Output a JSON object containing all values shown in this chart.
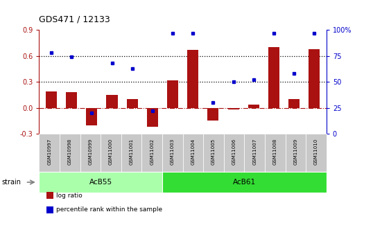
{
  "title": "GDS471 / 12133",
  "samples": [
    "GSM10997",
    "GSM10998",
    "GSM10999",
    "GSM11000",
    "GSM11001",
    "GSM11002",
    "GSM11003",
    "GSM11004",
    "GSM11005",
    "GSM11006",
    "GSM11007",
    "GSM11008",
    "GSM11009",
    "GSM11010"
  ],
  "log_ratio": [
    0.19,
    0.18,
    -0.2,
    0.15,
    0.1,
    -0.22,
    0.32,
    0.67,
    -0.15,
    -0.02,
    0.04,
    0.7,
    0.1,
    0.68
  ],
  "percentile": [
    78,
    74,
    20,
    68,
    63,
    22,
    97,
    97,
    30,
    50,
    52,
    97,
    58,
    97
  ],
  "bar_color": "#AA1111",
  "dot_color": "#0000CC",
  "ylim_left": [
    -0.3,
    0.9
  ],
  "ylim_right": [
    0,
    100
  ],
  "yticks_left": [
    -0.3,
    0.0,
    0.3,
    0.6,
    0.9
  ],
  "yticks_right": [
    0,
    25,
    50,
    75,
    100
  ],
  "hlines": [
    0.3,
    0.6
  ],
  "groups": [
    {
      "label": "AcB55",
      "start": 0,
      "end": 5,
      "color": "#AAFFAA"
    },
    {
      "label": "AcB61",
      "start": 6,
      "end": 13,
      "color": "#33DD33"
    }
  ],
  "legend_items": [
    {
      "label": "log ratio",
      "color": "#AA1111"
    },
    {
      "label": "percentile rank within the sample",
      "color": "#0000CC"
    }
  ],
  "strain_label": "strain",
  "background_color": "#FFFFFF",
  "tick_bg_color": "#C8C8C8"
}
